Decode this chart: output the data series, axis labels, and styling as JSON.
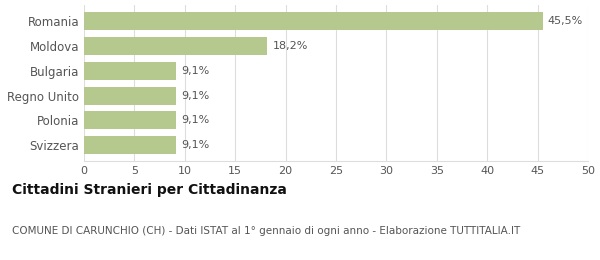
{
  "categories": [
    "Svizzera",
    "Polonia",
    "Regno Unito",
    "Bulgaria",
    "Moldova",
    "Romania"
  ],
  "values": [
    9.1,
    9.1,
    9.1,
    9.1,
    18.2,
    45.5
  ],
  "labels": [
    "9,1%",
    "9,1%",
    "9,1%",
    "9,1%",
    "18,2%",
    "45,5%"
  ],
  "bar_color": "#b5c98e",
  "background_color": "#ffffff",
  "xlim": [
    0,
    50
  ],
  "xticks": [
    0,
    5,
    10,
    15,
    20,
    25,
    30,
    35,
    40,
    45,
    50
  ],
  "title_bold": "Cittadini Stranieri per Cittadinanza",
  "subtitle": "COMUNE DI CARUNCHIO (CH) - Dati ISTAT al 1° gennaio di ogni anno - Elaborazione TUTTITALIA.IT",
  "title_fontsize": 10,
  "subtitle_fontsize": 7.5,
  "label_fontsize": 8,
  "tick_fontsize": 8,
  "ytick_fontsize": 8.5,
  "grid_color": "#dddddd",
  "text_color": "#555555",
  "title_color": "#111111"
}
